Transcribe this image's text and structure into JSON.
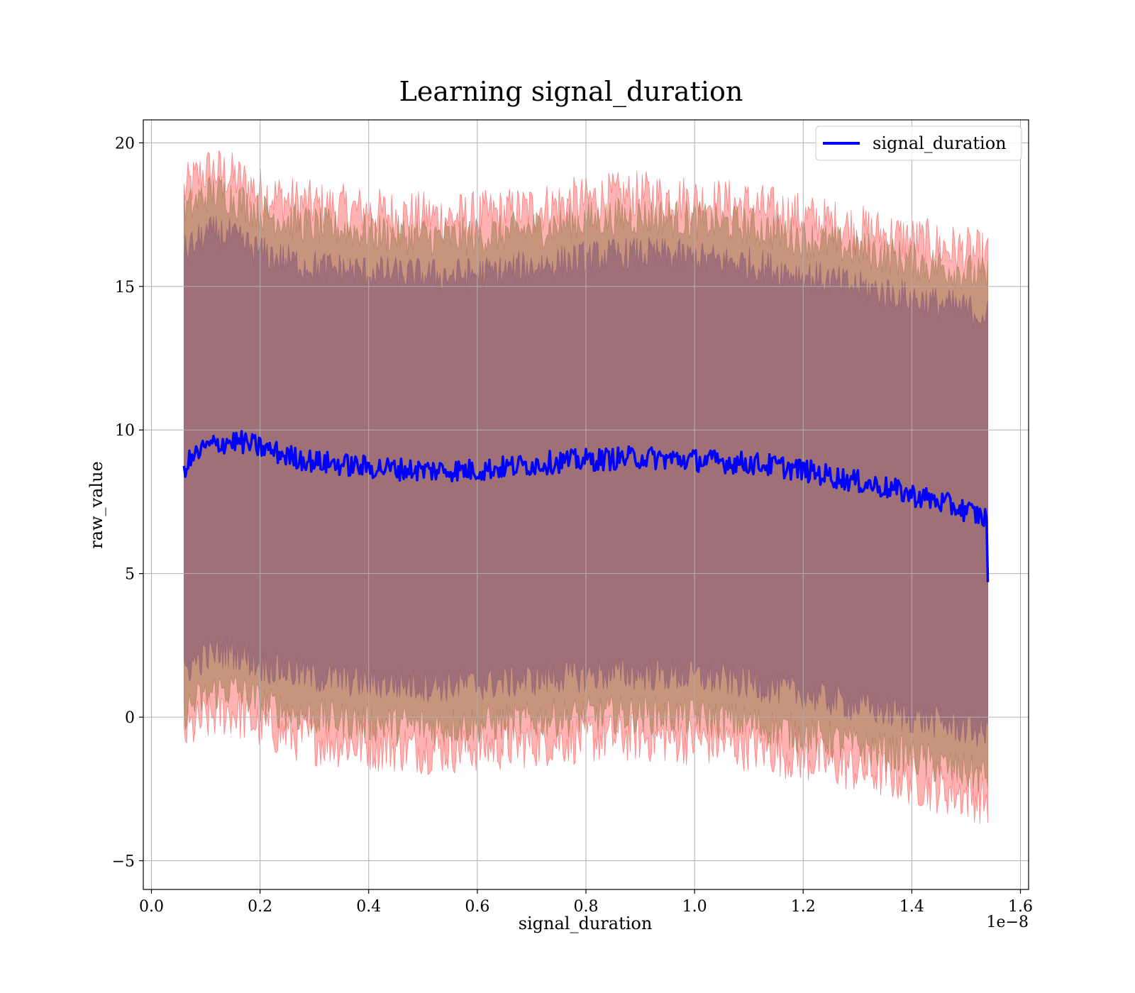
{
  "chart_data": {
    "type": "line",
    "title": "Learning signal_duration",
    "xlabel": "signal_duration",
    "ylabel": "raw_value",
    "x_offset_label": "1e−8",
    "xlim": [
      -0.015,
      1.615
    ],
    "ylim": [
      -6.0,
      20.8
    ],
    "x_ticks": [
      0.0,
      0.2,
      0.4,
      0.6,
      0.8,
      1.0,
      1.2,
      1.4,
      1.6
    ],
    "x_tick_labels": [
      "0.0",
      "0.2",
      "0.4",
      "0.6",
      "0.8",
      "1.0",
      "1.2",
      "1.4",
      "1.6"
    ],
    "y_ticks": [
      -5,
      0,
      5,
      10,
      15,
      20
    ],
    "y_tick_labels": [
      "−5",
      "0",
      "5",
      "10",
      "15",
      "20"
    ],
    "grid": true,
    "legend_position": "top-right",
    "colors": {
      "line": "#0000ff",
      "band_outer": "#ff6666",
      "band_middle": "#b5896a",
      "band_inner": "#a07078",
      "grid": "#b0b0b0",
      "axes": "#000000"
    },
    "series": [
      {
        "name": "signal_duration",
        "x": [
          0.06,
          0.08,
          0.1,
          0.12,
          0.14,
          0.16,
          0.18,
          0.2,
          0.25,
          0.3,
          0.35,
          0.4,
          0.45,
          0.5,
          0.55,
          0.6,
          0.65,
          0.7,
          0.75,
          0.8,
          0.85,
          0.9,
          0.95,
          1.0,
          1.05,
          1.1,
          1.15,
          1.2,
          1.25,
          1.3,
          1.35,
          1.4,
          1.45,
          1.5,
          1.54
        ],
        "y": [
          8.7,
          9.1,
          9.4,
          9.5,
          9.6,
          9.6,
          9.5,
          9.4,
          9.1,
          8.9,
          8.8,
          8.7,
          8.65,
          8.6,
          8.6,
          8.6,
          8.7,
          8.8,
          8.9,
          8.95,
          9.0,
          9.05,
          9.0,
          8.95,
          8.9,
          8.85,
          8.75,
          8.6,
          8.4,
          8.2,
          8.0,
          7.75,
          7.5,
          7.2,
          6.9
        ]
      }
    ],
    "bands": [
      {
        "role": "outer",
        "upper": [
          18.3,
          18.7,
          19.0,
          19.0,
          18.9,
          18.7,
          18.5,
          18.3,
          18.0,
          17.8,
          17.7,
          17.6,
          17.5,
          17.45,
          17.4,
          17.45,
          17.55,
          17.7,
          17.85,
          18.0,
          18.1,
          18.15,
          18.1,
          18.0,
          17.9,
          17.8,
          17.6,
          17.4,
          17.2,
          17.0,
          16.8,
          16.6,
          16.4,
          16.2,
          16.0
        ],
        "lower": [
          -0.6,
          -0.3,
          -0.1,
          0.1,
          0.2,
          0.1,
          -0.1,
          -0.3,
          -0.6,
          -0.8,
          -0.9,
          -1.0,
          -1.05,
          -1.1,
          -1.1,
          -1.05,
          -1.0,
          -0.9,
          -0.8,
          -0.75,
          -0.7,
          -0.7,
          -0.75,
          -0.8,
          -0.9,
          -1.0,
          -1.2,
          -1.4,
          -1.6,
          -1.8,
          -2.0,
          -2.2,
          -2.5,
          -2.7,
          -2.9
        ]
      },
      {
        "role": "middle",
        "upper": [
          17.6,
          17.9,
          18.2,
          18.3,
          18.2,
          18.0,
          17.8,
          17.6,
          17.3,
          17.1,
          17.0,
          16.9,
          16.8,
          16.75,
          16.7,
          16.75,
          16.85,
          17.0,
          17.15,
          17.3,
          17.4,
          17.45,
          17.4,
          17.3,
          17.2,
          17.1,
          16.9,
          16.7,
          16.5,
          16.3,
          16.1,
          15.9,
          15.7,
          15.5,
          15.3
        ],
        "lower": [
          0.2,
          0.5,
          0.7,
          0.9,
          1.0,
          0.9,
          0.7,
          0.5,
          0.2,
          0.0,
          -0.1,
          -0.2,
          -0.25,
          -0.3,
          -0.3,
          -0.25,
          -0.2,
          -0.1,
          0.0,
          0.05,
          0.1,
          0.1,
          0.05,
          0.0,
          -0.1,
          -0.2,
          -0.4,
          -0.6,
          -0.8,
          -1.0,
          -1.2,
          -1.4,
          -1.7,
          -1.9,
          -2.1
        ]
      },
      {
        "role": "inner",
        "upper": [
          16.2,
          16.5,
          16.8,
          16.9,
          16.8,
          16.6,
          16.4,
          16.2,
          15.9,
          15.7,
          15.6,
          15.5,
          15.45,
          15.4,
          15.4,
          15.45,
          15.55,
          15.7,
          15.85,
          16.0,
          16.1,
          16.15,
          16.1,
          16.0,
          15.9,
          15.8,
          15.6,
          15.4,
          15.2,
          15.0,
          14.8,
          14.6,
          14.4,
          14.2,
          14.0
        ],
        "lower": [
          1.6,
          1.9,
          2.1,
          2.2,
          2.3,
          2.2,
          2.0,
          1.8,
          1.6,
          1.4,
          1.3,
          1.2,
          1.15,
          1.1,
          1.1,
          1.15,
          1.2,
          1.3,
          1.4,
          1.45,
          1.5,
          1.5,
          1.45,
          1.4,
          1.3,
          1.2,
          1.0,
          0.8,
          0.6,
          0.4,
          0.2,
          0.0,
          -0.2,
          -0.4,
          -0.6
        ]
      }
    ]
  }
}
